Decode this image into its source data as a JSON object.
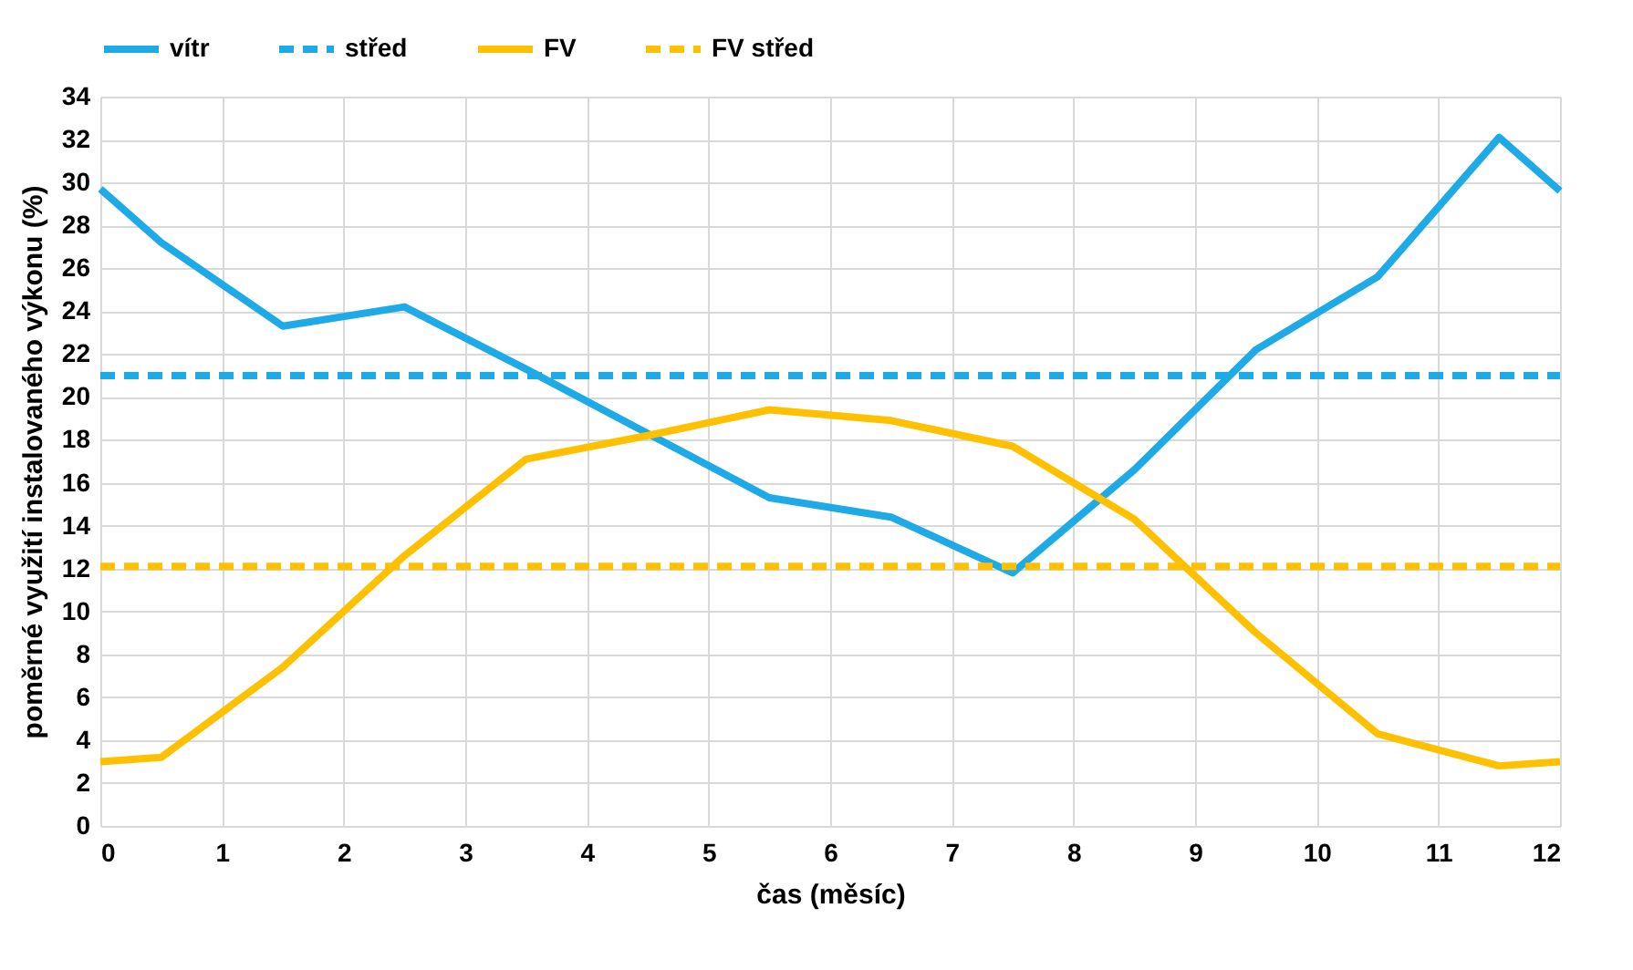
{
  "chart_data": {
    "type": "line",
    "xlabel": "čas (měsíc)",
    "ylabel": "poměrné využití instalovaného výkonu (%)",
    "xlim": [
      0,
      12
    ],
    "xticks": [
      0,
      1,
      2,
      3,
      4,
      5,
      6,
      7,
      8,
      9,
      10,
      11,
      12
    ],
    "ylim": [
      0,
      34
    ],
    "yticks": [
      0,
      2,
      4,
      6,
      8,
      10,
      12,
      14,
      16,
      18,
      20,
      22,
      24,
      26,
      28,
      30,
      32,
      34
    ],
    "grid": true,
    "legend": "top",
    "marker": "none",
    "series": [
      {
        "name": "vítr",
        "color": "#1eaae7",
        "line_style": "solid",
        "x": [
          0,
          0.5,
          1.5,
          2.5,
          3.5,
          4.5,
          5.5,
          6.5,
          7.5,
          8.5,
          9.5,
          10.5,
          11.5,
          12
        ],
        "values": [
          29.7,
          27.2,
          23.3,
          24.2,
          21.3,
          18.3,
          15.3,
          14.4,
          11.8,
          16.6,
          22.2,
          25.6,
          32.1,
          29.6
        ]
      },
      {
        "name": "střed",
        "color": "#1eaae7",
        "line_style": "dashed",
        "x": [
          0,
          12
        ],
        "values": [
          21.0,
          21.0
        ]
      },
      {
        "name": "FV",
        "color": "#ffc000",
        "line_style": "solid",
        "x": [
          0,
          0.5,
          1.5,
          2.5,
          3.5,
          4.5,
          5.5,
          6.5,
          7.5,
          8.5,
          9.5,
          10.5,
          11.5,
          12
        ],
        "values": [
          3.0,
          3.2,
          7.4,
          12.6,
          17.1,
          18.2,
          19.4,
          18.9,
          17.7,
          14.3,
          9.0,
          4.3,
          2.8,
          3.0
        ]
      },
      {
        "name": "FV střed",
        "color": "#ffc000",
        "line_style": "dashed",
        "x": [
          0,
          12
        ],
        "values": [
          12.1,
          12.1
        ]
      }
    ]
  }
}
